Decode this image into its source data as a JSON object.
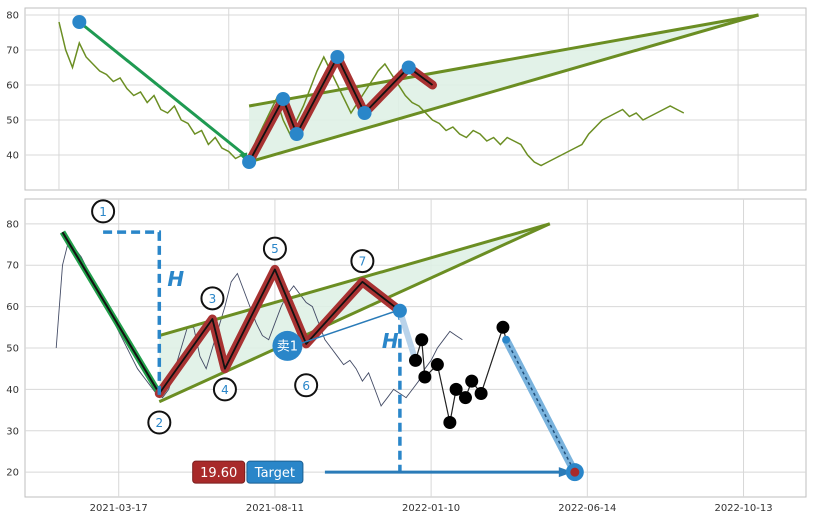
{
  "chart_data": [
    {
      "type": "line",
      "ylim": [
        30,
        82
      ],
      "yticks": [
        40,
        50,
        60,
        70,
        80
      ],
      "grid": true,
      "price": [
        [
          0,
          78
        ],
        [
          2,
          70
        ],
        [
          4,
          65
        ],
        [
          6,
          72
        ],
        [
          8,
          68
        ],
        [
          10,
          66
        ],
        [
          12,
          64
        ],
        [
          14,
          63
        ],
        [
          16,
          61
        ],
        [
          18,
          62
        ],
        [
          20,
          59
        ],
        [
          22,
          57
        ],
        [
          24,
          58
        ],
        [
          26,
          55
        ],
        [
          28,
          57
        ],
        [
          30,
          53
        ],
        [
          32,
          52
        ],
        [
          34,
          54
        ],
        [
          36,
          50
        ],
        [
          38,
          49
        ],
        [
          40,
          46
        ],
        [
          42,
          47
        ],
        [
          44,
          43
        ],
        [
          46,
          45
        ],
        [
          48,
          42
        ],
        [
          50,
          41
        ],
        [
          52,
          39
        ],
        [
          54,
          40
        ],
        [
          56,
          38
        ],
        [
          58,
          44
        ],
        [
          60,
          48
        ],
        [
          62,
          52
        ],
        [
          64,
          56
        ],
        [
          66,
          50
        ],
        [
          68,
          46
        ],
        [
          70,
          50
        ],
        [
          72,
          54
        ],
        [
          74,
          59
        ],
        [
          76,
          64
        ],
        [
          78,
          68
        ],
        [
          80,
          64
        ],
        [
          82,
          60
        ],
        [
          84,
          56
        ],
        [
          86,
          52
        ],
        [
          88,
          55
        ],
        [
          90,
          58
        ],
        [
          92,
          61
        ],
        [
          94,
          64
        ],
        [
          96,
          66
        ],
        [
          98,
          63
        ],
        [
          100,
          60
        ],
        [
          102,
          57
        ],
        [
          104,
          55
        ],
        [
          106,
          54
        ],
        [
          108,
          52
        ],
        [
          110,
          50
        ],
        [
          112,
          49
        ],
        [
          114,
          47
        ],
        [
          116,
          48
        ],
        [
          118,
          46
        ],
        [
          120,
          45
        ],
        [
          122,
          47
        ],
        [
          124,
          46
        ],
        [
          126,
          44
        ],
        [
          128,
          45
        ],
        [
          130,
          43
        ],
        [
          132,
          45
        ],
        [
          134,
          44
        ],
        [
          136,
          43
        ],
        [
          138,
          40
        ],
        [
          140,
          38
        ],
        [
          142,
          37
        ],
        [
          144,
          38
        ],
        [
          146,
          39
        ],
        [
          148,
          40
        ],
        [
          150,
          41
        ],
        [
          152,
          42
        ],
        [
          154,
          43
        ],
        [
          156,
          46
        ],
        [
          158,
          48
        ],
        [
          160,
          50
        ],
        [
          162,
          51
        ],
        [
          164,
          52
        ],
        [
          166,
          53
        ],
        [
          168,
          51
        ],
        [
          170,
          52
        ],
        [
          172,
          50
        ],
        [
          174,
          51
        ],
        [
          176,
          52
        ],
        [
          178,
          53
        ],
        [
          180,
          54
        ],
        [
          182,
          53
        ],
        [
          184,
          52
        ]
      ],
      "pattern": [
        [
          56,
          38
        ],
        [
          66,
          56
        ],
        [
          70,
          46
        ],
        [
          82,
          68
        ],
        [
          90,
          52
        ],
        [
          103,
          65
        ],
        [
          110,
          60
        ]
      ],
      "upper_line": [
        [
          56,
          54
        ],
        [
          206,
          80
        ]
      ],
      "lower_line": [
        [
          56,
          38
        ],
        [
          206,
          80
        ]
      ],
      "arrow": [
        [
          6,
          78
        ],
        [
          56,
          39
        ]
      ],
      "markers": [
        [
          6,
          78
        ],
        [
          56,
          38
        ],
        [
          66,
          56
        ],
        [
          70,
          46
        ],
        [
          82,
          68
        ],
        [
          90,
          52
        ],
        [
          103,
          65
        ]
      ]
    },
    {
      "type": "line",
      "ylim": [
        14,
        86
      ],
      "yticks": [
        20,
        30,
        40,
        50,
        60,
        70,
        80
      ],
      "x_tick_labels": [
        "2021-03-17",
        "2021-08-11",
        "2022-01-10",
        "2022-06-14",
        "2022-10-13"
      ],
      "x_tick_positions": [
        20,
        70,
        120,
        170,
        220
      ],
      "grid": true,
      "price": [
        [
          0,
          50
        ],
        [
          2,
          70
        ],
        [
          4,
          76
        ],
        [
          6,
          74
        ],
        [
          8,
          72
        ],
        [
          10,
          69
        ],
        [
          12,
          66
        ],
        [
          14,
          63
        ],
        [
          16,
          60
        ],
        [
          18,
          57
        ],
        [
          20,
          54
        ],
        [
          22,
          51
        ],
        [
          24,
          48
        ],
        [
          26,
          45
        ],
        [
          28,
          43
        ],
        [
          30,
          41
        ],
        [
          32,
          39
        ],
        [
          34,
          38
        ],
        [
          36,
          40
        ],
        [
          38,
          45
        ],
        [
          40,
          50
        ],
        [
          42,
          55
        ],
        [
          44,
          55
        ],
        [
          46,
          48
        ],
        [
          48,
          45
        ],
        [
          50,
          50
        ],
        [
          52,
          55
        ],
        [
          54,
          60
        ],
        [
          56,
          66
        ],
        [
          58,
          68
        ],
        [
          60,
          64
        ],
        [
          62,
          60
        ],
        [
          64,
          56
        ],
        [
          66,
          53
        ],
        [
          68,
          52
        ],
        [
          70,
          56
        ],
        [
          72,
          60
        ],
        [
          74,
          63
        ],
        [
          76,
          65
        ],
        [
          78,
          63
        ],
        [
          80,
          61
        ],
        [
          82,
          60
        ],
        [
          84,
          56
        ],
        [
          86,
          52
        ],
        [
          88,
          50
        ],
        [
          90,
          48
        ],
        [
          92,
          46
        ],
        [
          94,
          47
        ],
        [
          96,
          45
        ],
        [
          98,
          42
        ],
        [
          100,
          44
        ],
        [
          102,
          40
        ],
        [
          104,
          36
        ],
        [
          106,
          38
        ],
        [
          108,
          40
        ],
        [
          110,
          39
        ],
        [
          112,
          38
        ],
        [
          114,
          40
        ],
        [
          116,
          42
        ],
        [
          118,
          45
        ],
        [
          120,
          47
        ],
        [
          122,
          50
        ],
        [
          124,
          52
        ],
        [
          126,
          54
        ],
        [
          128,
          53
        ],
        [
          130,
          52
        ]
      ],
      "black_line": [
        [
          2,
          78
        ],
        [
          33,
          39
        ]
      ],
      "pattern": [
        [
          33,
          39
        ],
        [
          50,
          57
        ],
        [
          54,
          45
        ],
        [
          70,
          69
        ],
        [
          80,
          51
        ],
        [
          98,
          66
        ],
        [
          110,
          59
        ]
      ],
      "upper_line": [
        [
          33,
          53
        ],
        [
          158,
          80
        ]
      ],
      "lower_line": [
        [
          33,
          37
        ],
        [
          158,
          80
        ]
      ],
      "h_dashed_left": [
        [
          15,
          78
        ],
        [
          33,
          78
        ],
        [
          33,
          38
        ]
      ],
      "h_dashed_right": [
        [
          110,
          59
        ],
        [
          110,
          20
        ]
      ],
      "target_arrow": [
        [
          86,
          20
        ],
        [
          166,
          20
        ]
      ],
      "projection": [
        [
          110,
          59
        ],
        [
          115,
          47
        ],
        [
          117,
          52
        ],
        [
          118,
          43
        ],
        [
          122,
          46
        ],
        [
          126,
          32
        ],
        [
          128,
          40
        ],
        [
          131,
          38
        ],
        [
          133,
          42
        ],
        [
          136,
          39
        ],
        [
          143,
          55
        ],
        [
          144,
          52
        ],
        [
          166,
          20
        ]
      ],
      "black_markers": [
        [
          115,
          47
        ],
        [
          117,
          52
        ],
        [
          118,
          43
        ],
        [
          122,
          46
        ],
        [
          126,
          32
        ],
        [
          128,
          40
        ],
        [
          131,
          38
        ],
        [
          133,
          42
        ],
        [
          136,
          39
        ],
        [
          143,
          55
        ]
      ],
      "pivot_labels": [
        {
          "label": "1",
          "x": 15,
          "y": 83
        },
        {
          "label": "2",
          "x": 33,
          "y": 32
        },
        {
          "label": "3",
          "x": 50,
          "y": 62
        },
        {
          "label": "4",
          "x": 54,
          "y": 40
        },
        {
          "label": "5",
          "x": 70,
          "y": 74
        },
        {
          "label": "6",
          "x": 80,
          "y": 41
        },
        {
          "label": "7",
          "x": 98,
          "y": 71
        }
      ],
      "sell_label": "卖1",
      "h_label": "H",
      "price_label": "19.60",
      "target_label": "Target",
      "colors": {
        "price": "#6b8e23",
        "pattern": "#a83232",
        "guide": "#2a86c9",
        "fill": "#dff1e5",
        "black": "#000000",
        "red_badge": "#a82a2a"
      }
    }
  ]
}
